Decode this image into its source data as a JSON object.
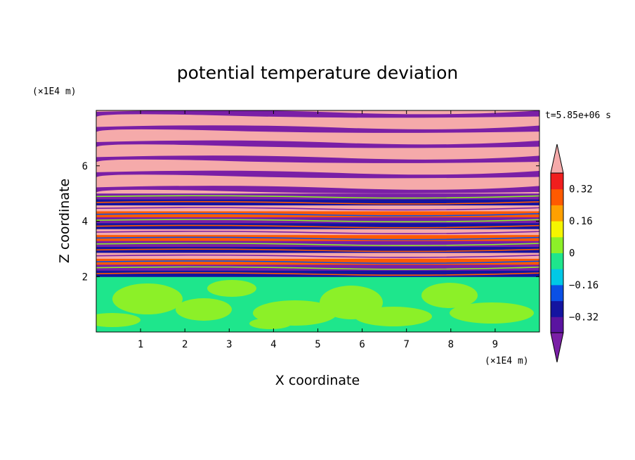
{
  "chart_data": {
    "type": "heatmap",
    "title": "potential temperature deviation",
    "xlabel": "X coordinate",
    "ylabel": "Z coordinate",
    "x_unit": "(×1E4 m)",
    "y_unit": "(×1E4 m)",
    "time_label": "t=5.85e+06 s",
    "xlim": [
      0,
      10
    ],
    "ylim": [
      0,
      8
    ],
    "x_ticks": [
      "1",
      "2",
      "3",
      "4",
      "5",
      "6",
      "7",
      "8",
      "9"
    ],
    "y_ticks": [
      "2",
      "4",
      "6"
    ],
    "colorbar": {
      "levels": [
        -0.4,
        -0.32,
        -0.24,
        -0.16,
        -0.08,
        0,
        0.08,
        0.16,
        0.24,
        0.32,
        0.4
      ],
      "tick_labels": [
        "0.32",
        "0.16",
        "0",
        "−0.16",
        "−0.32"
      ],
      "tick_values": [
        0.32,
        0.16,
        0,
        -0.16,
        -0.32
      ],
      "extend": "both",
      "colors": [
        "#7a1fa6",
        "#5a14a0",
        "#1414a0",
        "#0a50e6",
        "#00c8e6",
        "#1ee68c",
        "#8cf028",
        "#f5f500",
        "#ffa000",
        "#ff5a00",
        "#f01e1e",
        "#f5aaaa"
      ]
    },
    "layers": [
      {
        "z_range": [
          0,
          2.0
        ],
        "value": "0 to 0.08, mixed with -0.08 to 0",
        "colors": [
          "#1ee68c",
          "#8cf028"
        ]
      },
      {
        "z_range": [
          2.0,
          5.0
        ],
        "value": "alternating bands from below -0.4 to above 0.4",
        "colors": [
          "#7a1fa6",
          "#1414a0",
          "#f5aaaa",
          "#ff5a00"
        ]
      },
      {
        "z_range": [
          5.0,
          8.0
        ],
        "value": "alternating bands above 0.4 and below -0.4",
        "colors": [
          "#f5aaaa",
          "#7a1fa6"
        ]
      }
    ]
  }
}
